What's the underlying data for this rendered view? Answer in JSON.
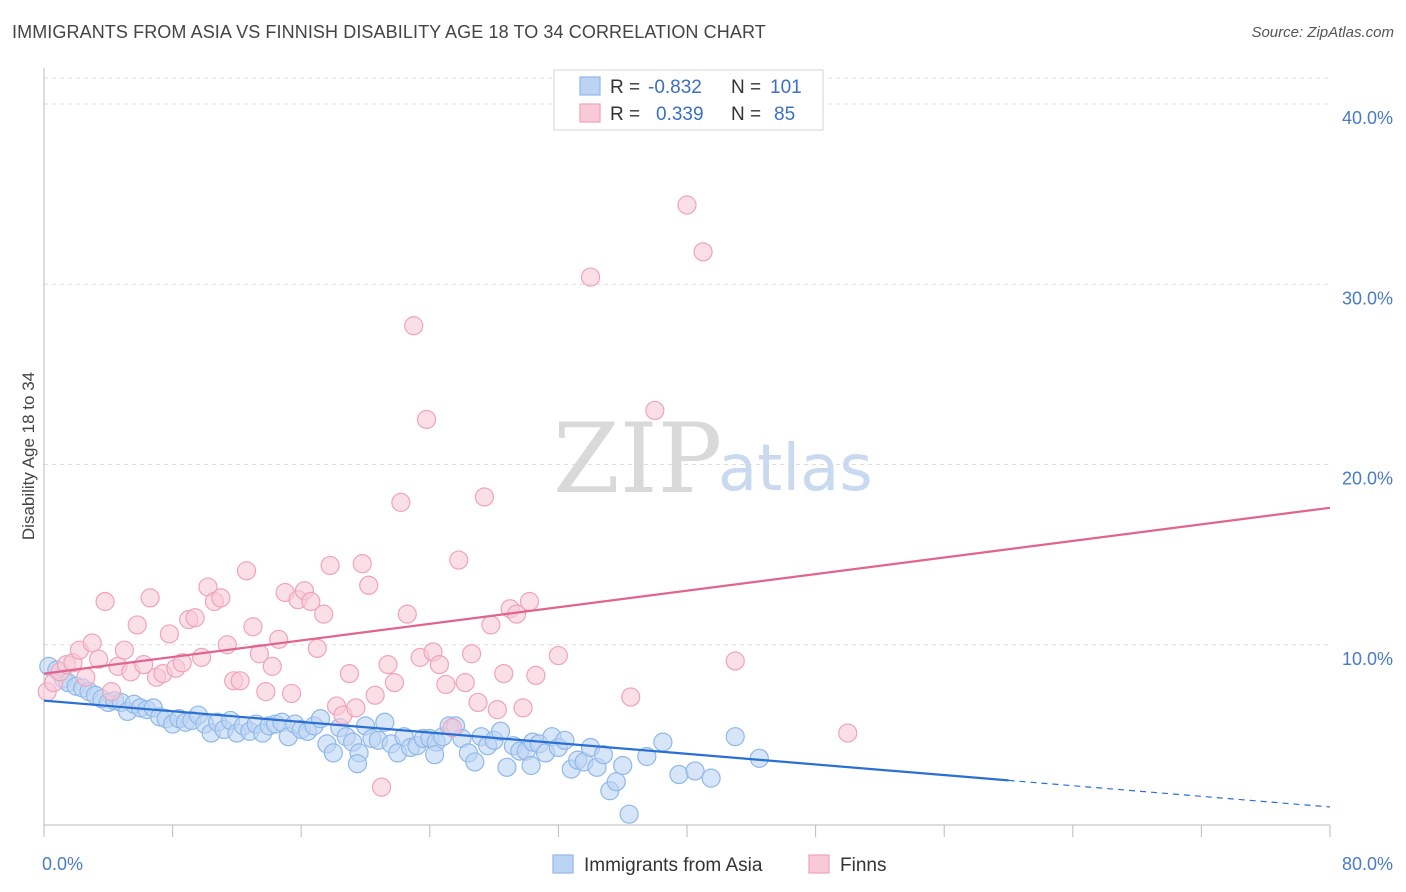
{
  "chart_data": {
    "type": "scatter",
    "title": "IMMIGRANTS FROM ASIA VS FINNISH DISABILITY AGE 18 TO 34 CORRELATION CHART",
    "source": "Source: ZipAtlas.com",
    "xlabel": "",
    "ylabel": "Disability Age 18 to 34",
    "xlim": [
      0,
      80
    ],
    "ylim": [
      0,
      42
    ],
    "x_tick_labels": [
      {
        "value": 0,
        "label": "0.0%"
      },
      {
        "value": 80,
        "label": "80.0%"
      }
    ],
    "y_tick_labels": [
      {
        "value": 10,
        "label": "10.0%"
      },
      {
        "value": 20,
        "label": "20.0%"
      },
      {
        "value": 30,
        "label": "30.0%"
      },
      {
        "value": 40,
        "label": "40.0%"
      }
    ],
    "watermark": {
      "part1": "ZIP",
      "part2": "atlas"
    },
    "legend": [
      {
        "name": "Immigrants from Asia",
        "r_label": "R =",
        "r": "-0.832",
        "n_label": "N =",
        "n": "101",
        "color": "#8fb8ea",
        "fill": "#bcd4f4"
      },
      {
        "name": "Finns",
        "r_label": "R =",
        "r": "0.339",
        "n_label": "N =",
        "n": "85",
        "color": "#f0a3bb",
        "fill": "#f8c9d7"
      }
    ],
    "series": [
      {
        "name": "Immigrants from Asia",
        "color": "#8fb8ea",
        "trend": {
          "x0": 0,
          "y0": 6.9,
          "x1": 80,
          "y1": 1.0,
          "solid_until": 60,
          "color": "#2a6fd3"
        },
        "points": [
          [
            0.3,
            8.8
          ],
          [
            0.8,
            8.6
          ],
          [
            1.2,
            8.1
          ],
          [
            1.5,
            7.9
          ],
          [
            2.0,
            7.7
          ],
          [
            2.4,
            7.6
          ],
          [
            2.8,
            7.4
          ],
          [
            3.2,
            7.2
          ],
          [
            3.6,
            7.0
          ],
          [
            4.0,
            6.8
          ],
          [
            4.4,
            6.9
          ],
          [
            4.8,
            6.8
          ],
          [
            5.2,
            6.3
          ],
          [
            5.6,
            6.7
          ],
          [
            6.0,
            6.5
          ],
          [
            6.4,
            6.4
          ],
          [
            6.8,
            6.5
          ],
          [
            7.2,
            6.0
          ],
          [
            7.6,
            5.9
          ],
          [
            8.0,
            5.6
          ],
          [
            8.4,
            5.9
          ],
          [
            8.8,
            5.7
          ],
          [
            9.2,
            5.8
          ],
          [
            9.6,
            6.1
          ],
          [
            10.0,
            5.6
          ],
          [
            10.4,
            5.1
          ],
          [
            10.8,
            5.7
          ],
          [
            11.2,
            5.3
          ],
          [
            11.6,
            5.8
          ],
          [
            12.0,
            5.1
          ],
          [
            12.4,
            5.5
          ],
          [
            12.8,
            5.2
          ],
          [
            13.2,
            5.6
          ],
          [
            13.6,
            5.1
          ],
          [
            14.0,
            5.5
          ],
          [
            14.4,
            5.6
          ],
          [
            14.8,
            5.7
          ],
          [
            15.2,
            4.9
          ],
          [
            15.6,
            5.6
          ],
          [
            16.0,
            5.3
          ],
          [
            16.4,
            5.2
          ],
          [
            16.8,
            5.5
          ],
          [
            17.2,
            5.9
          ],
          [
            17.6,
            4.5
          ],
          [
            18.0,
            4.0
          ],
          [
            18.4,
            5.4
          ],
          [
            18.8,
            4.9
          ],
          [
            19.2,
            4.6
          ],
          [
            19.6,
            4.0
          ],
          [
            20.0,
            5.5
          ],
          [
            20.4,
            4.8
          ],
          [
            20.8,
            4.7
          ],
          [
            21.2,
            5.7
          ],
          [
            21.6,
            4.5
          ],
          [
            22.0,
            4.0
          ],
          [
            22.4,
            4.9
          ],
          [
            22.8,
            4.3
          ],
          [
            23.2,
            4.4
          ],
          [
            23.6,
            4.8
          ],
          [
            24.0,
            4.8
          ],
          [
            24.4,
            4.6
          ],
          [
            24.8,
            4.9
          ],
          [
            25.2,
            5.5
          ],
          [
            25.6,
            5.5
          ],
          [
            26.0,
            4.8
          ],
          [
            26.4,
            4.0
          ],
          [
            26.8,
            3.5
          ],
          [
            27.2,
            4.9
          ],
          [
            27.6,
            4.4
          ],
          [
            28.0,
            4.7
          ],
          [
            28.4,
            5.2
          ],
          [
            28.8,
            3.2
          ],
          [
            29.2,
            4.4
          ],
          [
            29.6,
            4.1
          ],
          [
            30.0,
            4.1
          ],
          [
            30.4,
            4.6
          ],
          [
            30.8,
            4.5
          ],
          [
            31.2,
            4.0
          ],
          [
            31.6,
            4.9
          ],
          [
            32.0,
            4.3
          ],
          [
            32.4,
            4.7
          ],
          [
            32.8,
            3.1
          ],
          [
            33.2,
            3.6
          ],
          [
            33.6,
            3.5
          ],
          [
            34.0,
            4.3
          ],
          [
            34.4,
            3.2
          ],
          [
            34.8,
            3.9
          ],
          [
            35.2,
            1.9
          ],
          [
            35.6,
            2.4
          ],
          [
            36.0,
            3.3
          ],
          [
            36.4,
            0.6
          ],
          [
            37.5,
            3.8
          ],
          [
            38.5,
            4.6
          ],
          [
            39.5,
            2.8
          ],
          [
            40.5,
            3.0
          ],
          [
            41.5,
            2.6
          ],
          [
            43.0,
            4.9
          ],
          [
            44.5,
            3.7
          ],
          [
            19.5,
            3.4
          ],
          [
            24.3,
            3.9
          ],
          [
            30.3,
            3.3
          ]
        ]
      },
      {
        "name": "Finns",
        "color": "#f0a3bb",
        "trend": {
          "x0": 0,
          "y0": 8.4,
          "x1": 80,
          "y1": 17.6,
          "solid_until": 80,
          "color": "#e0648f"
        },
        "points": [
          [
            0.2,
            7.4
          ],
          [
            0.6,
            7.9
          ],
          [
            1.0,
            8.5
          ],
          [
            1.4,
            8.9
          ],
          [
            1.8,
            9.0
          ],
          [
            2.2,
            9.7
          ],
          [
            2.6,
            8.2
          ],
          [
            3.0,
            10.1
          ],
          [
            3.4,
            9.2
          ],
          [
            3.8,
            12.4
          ],
          [
            4.2,
            7.4
          ],
          [
            4.6,
            8.8
          ],
          [
            5.0,
            9.7
          ],
          [
            5.4,
            8.5
          ],
          [
            5.8,
            11.1
          ],
          [
            6.2,
            8.9
          ],
          [
            6.6,
            12.6
          ],
          [
            7.0,
            8.2
          ],
          [
            7.4,
            8.4
          ],
          [
            7.8,
            10.6
          ],
          [
            8.2,
            8.7
          ],
          [
            8.6,
            9.0
          ],
          [
            9.0,
            11.4
          ],
          [
            9.4,
            11.5
          ],
          [
            9.8,
            9.3
          ],
          [
            10.2,
            13.2
          ],
          [
            10.6,
            12.4
          ],
          [
            11.0,
            12.6
          ],
          [
            11.4,
            10.0
          ],
          [
            11.8,
            8.0
          ],
          [
            12.2,
            8.0
          ],
          [
            12.6,
            14.1
          ],
          [
            13.0,
            11.0
          ],
          [
            13.4,
            9.5
          ],
          [
            13.8,
            7.4
          ],
          [
            14.2,
            8.8
          ],
          [
            14.6,
            10.3
          ],
          [
            15.0,
            12.9
          ],
          [
            15.4,
            7.3
          ],
          [
            15.8,
            12.5
          ],
          [
            16.2,
            13.0
          ],
          [
            16.6,
            12.4
          ],
          [
            17.0,
            9.8
          ],
          [
            17.4,
            11.7
          ],
          [
            17.8,
            14.4
          ],
          [
            18.2,
            6.6
          ],
          [
            18.6,
            6.1
          ],
          [
            19.0,
            8.4
          ],
          [
            19.4,
            6.5
          ],
          [
            19.8,
            14.5
          ],
          [
            20.2,
            13.3
          ],
          [
            20.6,
            7.2
          ],
          [
            21.0,
            2.1
          ],
          [
            21.4,
            8.9
          ],
          [
            21.8,
            7.9
          ],
          [
            22.2,
            17.9
          ],
          [
            22.6,
            11.7
          ],
          [
            23.0,
            27.7
          ],
          [
            23.4,
            9.3
          ],
          [
            23.8,
            22.5
          ],
          [
            24.2,
            9.6
          ],
          [
            24.6,
            8.9
          ],
          [
            25.0,
            7.8
          ],
          [
            25.4,
            5.4
          ],
          [
            25.8,
            14.7
          ],
          [
            26.2,
            7.9
          ],
          [
            26.6,
            9.5
          ],
          [
            27.0,
            6.8
          ],
          [
            27.4,
            18.2
          ],
          [
            27.8,
            11.1
          ],
          [
            28.2,
            6.4
          ],
          [
            28.6,
            8.4
          ],
          [
            29.0,
            12.0
          ],
          [
            29.4,
            11.7
          ],
          [
            29.8,
            6.5
          ],
          [
            30.2,
            12.4
          ],
          [
            30.6,
            8.3
          ],
          [
            32.0,
            9.4
          ],
          [
            34.0,
            30.4
          ],
          [
            36.5,
            7.1
          ],
          [
            38.0,
            23.0
          ],
          [
            40.0,
            34.4
          ],
          [
            41.0,
            31.8
          ],
          [
            43.0,
            9.1
          ],
          [
            50.0,
            5.1
          ]
        ]
      }
    ]
  }
}
